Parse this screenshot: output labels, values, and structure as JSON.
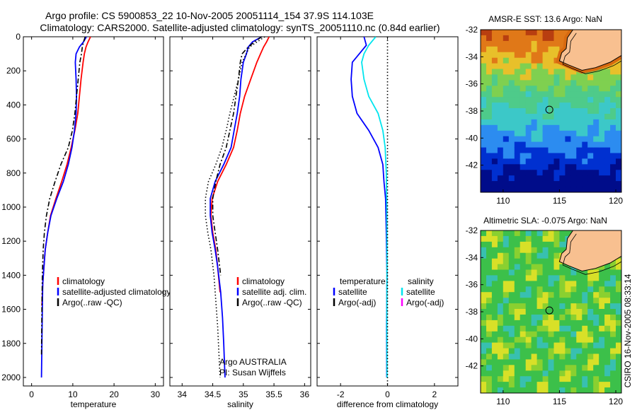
{
  "header": {
    "line1": "Argo profile: CS 5900853_22 10-Nov-2005 20051114_154 37.9S 114.103E",
    "line2": "Climatology: CARS2000. Satellite-adjusted climatology: synTS_20051110.nc (0.84d earlier)"
  },
  "side_label": "CSIRO 16-Nov-2005 08:33:14",
  "colors": {
    "climatology": "#ff0000",
    "satellite": "#0000ff",
    "argo": "#000000",
    "satellite_salinity": "#00e5ee",
    "argo_salinity_adj": "#ff00ff",
    "land": "#f8c090"
  },
  "chart_data": [
    {
      "type": "line",
      "id": "temperature_profile",
      "xlabel": "temperature",
      "ylabel": "",
      "xlim": [
        -2,
        32
      ],
      "ylim": [
        2050,
        0
      ],
      "xticks": [
        0,
        10,
        20,
        30
      ],
      "yticks": [
        0,
        200,
        400,
        600,
        800,
        1000,
        1200,
        1400,
        1600,
        1800,
        2000
      ],
      "legend": [
        {
          "label": "climatology",
          "color": "#ff0000"
        },
        {
          "label": "satellite-adjusted climatology",
          "color": "#0000ff"
        },
        {
          "label": "Argo(..raw -QC)",
          "color": "#000000"
        }
      ],
      "series": [
        {
          "name": "climatology",
          "style": "solid",
          "color": "#ff0000",
          "x": [
            14.3,
            13.7,
            13.2,
            12.8,
            12.5,
            12.0,
            11.6,
            11.2,
            10.5,
            9.6,
            8.6,
            7.3,
            5.9,
            4.6,
            3.9,
            3.3,
            3.0,
            2.7,
            2.5
          ],
          "y": [
            0,
            30,
            60,
            100,
            150,
            250,
            350,
            450,
            550,
            650,
            750,
            850,
            950,
            1050,
            1150,
            1250,
            1350,
            1450,
            1580
          ]
        },
        {
          "name": "satellite-adjusted climatology",
          "style": "solid",
          "color": "#0000ff",
          "x": [
            13.3,
            12.6,
            11.6,
            10.8,
            10.6,
            10.8,
            10.9,
            10.8,
            10.4,
            9.8,
            8.9,
            7.7,
            6.1,
            4.7,
            3.9,
            3.3,
            3.0,
            2.7,
            2.6,
            2.5,
            2.4
          ],
          "y": [
            0,
            30,
            60,
            100,
            150,
            250,
            350,
            450,
            550,
            650,
            750,
            850,
            950,
            1050,
            1150,
            1250,
            1350,
            1450,
            1600,
            1800,
            2000
          ]
        },
        {
          "name": "Argo(..raw -QC)",
          "style": "dashdot",
          "color": "#000000",
          "x": [
            13.0,
            12.6,
            12.3,
            12.1,
            11.7,
            11.3,
            10.9,
            10.5,
            9.9,
            8.9,
            7.1,
            5.7,
            4.4,
            3.6,
            3.1,
            2.8,
            2.6,
            2.5,
            2.4
          ],
          "y": [
            0,
            30,
            60,
            100,
            150,
            250,
            350,
            450,
            550,
            650,
            750,
            850,
            950,
            1050,
            1150,
            1250,
            1400,
            1600,
            1870
          ]
        }
      ]
    },
    {
      "type": "line",
      "id": "salinity_profile",
      "xlabel": "salinity",
      "ylabel": "",
      "xlim": [
        33.8,
        36.1
      ],
      "ylim": [
        2050,
        0
      ],
      "xticks": [
        34,
        34.5,
        35,
        35.5,
        36
      ],
      "legend": [
        {
          "label": "climatology",
          "color": "#ff0000"
        },
        {
          "label": "satellite adj. clim.",
          "color": "#0000ff"
        },
        {
          "label": "Argo(..raw -QC)",
          "color": "#000000"
        }
      ],
      "annotation": [
        "Argo AUSTRALIA",
        "PI: Susan Wijffels"
      ],
      "series": [
        {
          "name": "climatology",
          "style": "solid",
          "color": "#ff0000",
          "x": [
            35.42,
            35.38,
            35.33,
            35.28,
            35.22,
            35.12,
            35.02,
            34.95,
            34.9,
            34.84,
            34.72,
            34.58,
            34.49,
            34.47,
            34.5,
            34.55,
            34.58,
            34.62
          ],
          "y": [
            0,
            30,
            60,
            100,
            150,
            250,
            350,
            450,
            550,
            650,
            750,
            850,
            950,
            1050,
            1150,
            1250,
            1350,
            1500
          ]
        },
        {
          "name": "satellite adj. clim.",
          "style": "solid",
          "color": "#0000ff",
          "x": [
            35.3,
            35.15,
            35.08,
            35.05,
            35.0,
            34.96,
            34.94,
            34.9,
            34.85,
            34.8,
            34.68,
            34.54,
            34.46,
            34.46,
            34.49,
            34.54,
            34.58,
            34.63,
            34.66,
            34.68,
            34.7
          ],
          "y": [
            0,
            30,
            60,
            100,
            150,
            250,
            350,
            450,
            550,
            650,
            750,
            850,
            950,
            1050,
            1150,
            1250,
            1350,
            1500,
            1650,
            1800,
            2000
          ]
        },
        {
          "name": "Argo(..raw -QC)",
          "style": "dashdot",
          "color": "#000000",
          "x": [
            35.3,
            35.18,
            35.08,
            34.98,
            34.95,
            34.92,
            34.88,
            34.84,
            34.78,
            34.72,
            34.62,
            34.55,
            34.5,
            34.5,
            34.54,
            34.58,
            34.63
          ],
          "y": [
            0,
            30,
            60,
            100,
            150,
            250,
            350,
            450,
            550,
            650,
            750,
            850,
            950,
            1050,
            1150,
            1250,
            1400
          ]
        },
        {
          "name": "",
          "style": "dotted",
          "color": "#000000",
          "x": [
            35.35,
            35.1,
            34.98,
            34.92,
            34.85,
            34.78,
            34.72,
            34.65,
            34.55,
            34.43,
            34.38,
            34.38,
            34.42,
            34.47,
            34.52,
            34.55,
            34.58,
            34.6,
            34.62
          ],
          "y": [
            0,
            60,
            150,
            250,
            350,
            450,
            550,
            650,
            750,
            850,
            950,
            1050,
            1150,
            1250,
            1400,
            1550,
            1700,
            1850,
            2000
          ]
        }
      ]
    },
    {
      "type": "line",
      "id": "difference_profile",
      "xlabel": "difference from climatology",
      "ylabel": "",
      "xlim": [
        -3,
        3
      ],
      "ylim": [
        2050,
        0
      ],
      "xticks": [
        -2,
        0,
        2
      ],
      "legend": [
        {
          "label": "temperature",
          "color": ""
        },
        {
          "label": "satellite",
          "color": "#0000ff"
        },
        {
          "label": "Argo(-adj)",
          "color": "#000000"
        },
        {
          "label": "salinity",
          "color": ""
        },
        {
          "label": "satellite",
          "color": "#00e5ee"
        },
        {
          "label": "Argo(-adj)",
          "color": "#ff00ff"
        }
      ],
      "series": [
        {
          "name": "temperature satellite",
          "style": "solid",
          "color": "#0000ff",
          "x": [
            -1.0,
            -0.9,
            -1.2,
            -1.5,
            -1.55,
            -1.5,
            -1.3,
            -0.8,
            -0.4,
            -0.2,
            -0.15,
            -0.08,
            -0.05,
            -0.02,
            -0.04,
            -0.03
          ],
          "y": [
            0,
            50,
            100,
            150,
            250,
            350,
            450,
            550,
            650,
            750,
            850,
            950,
            1150,
            1400,
            1700,
            2000
          ]
        },
        {
          "name": "salinity satellite",
          "style": "solid",
          "color": "#00e5ee",
          "x": [
            -0.5,
            -0.8,
            -1.0,
            -1.1,
            -1.0,
            -0.8,
            -0.4,
            -0.2,
            -0.1,
            -0.05,
            -0.03,
            -0.02,
            -0.03,
            -0.02
          ],
          "y": [
            0,
            50,
            100,
            150,
            250,
            350,
            450,
            550,
            650,
            800,
            1000,
            1300,
            1700,
            2000
          ]
        },
        {
          "name": "zero",
          "style": "dotted",
          "color": "#000000",
          "x": [
            0,
            0
          ],
          "y": [
            0,
            2050
          ]
        }
      ]
    },
    {
      "type": "heatmap",
      "id": "amsr_sst_map",
      "title": "AMSR-E SST: 13.6 Argo: NaN",
      "xlim": [
        108,
        120.5
      ],
      "ylim": [
        -44,
        -32
      ],
      "xticks": [
        110,
        115,
        120
      ],
      "yticks": [
        -32,
        -34,
        -36,
        -38,
        -40,
        -42
      ],
      "marker": {
        "lon": 114.103,
        "lat": -37.9
      }
    },
    {
      "type": "heatmap",
      "id": "altimetric_sla_map",
      "title": "Altimetric SLA: -0.075 Argo: NaN",
      "xlim": [
        108,
        120.5
      ],
      "ylim": [
        -44,
        -32
      ],
      "xticks": [
        110,
        115,
        120
      ],
      "yticks": [
        -32,
        -34,
        -36,
        -38,
        -40,
        -42
      ],
      "marker": {
        "lon": 114.103,
        "lat": -37.9
      }
    }
  ]
}
